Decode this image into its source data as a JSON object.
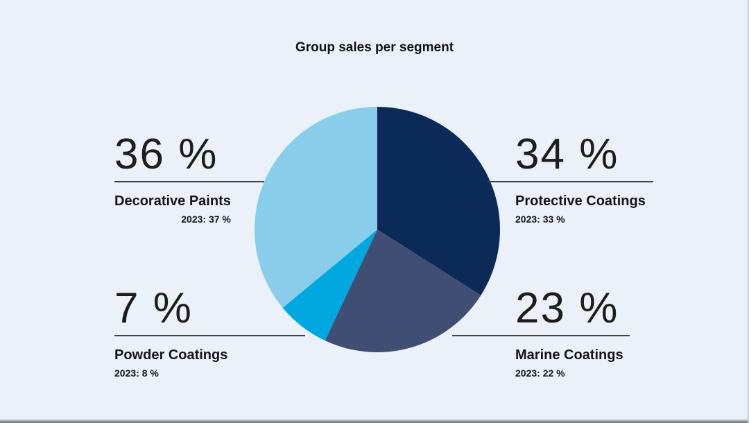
{
  "page": {
    "background_color": "#EAF1F8",
    "text_color": "#1D1D1B",
    "rule_color": "#424242"
  },
  "chart_data": {
    "type": "pie",
    "title": "Group sales per segment",
    "unit": "%",
    "rotation": "clockwise-from-12-oclock",
    "legend_position": "callouts-around-pie",
    "segments": [
      {
        "label": "Protective Coatings",
        "value": 34,
        "display": "34 %",
        "prior": "2023: 33 %",
        "color": "#0C2A58",
        "callout": "top-right"
      },
      {
        "label": "Marine Coatings",
        "value": 23,
        "display": "23 %",
        "prior": "2023: 22 %",
        "color": "#414E73",
        "callout": "bottom-right"
      },
      {
        "label": "Powder Coatings",
        "value": 7,
        "display": "7 %",
        "prior": "2023: 8 %",
        "color": "#00A8E0",
        "callout": "bottom-left"
      },
      {
        "label": "Decorative Paints",
        "value": 36,
        "display": "36 %",
        "prior": "2023: 37 %",
        "color": "#89CDEB",
        "callout": "top-left"
      }
    ]
  }
}
